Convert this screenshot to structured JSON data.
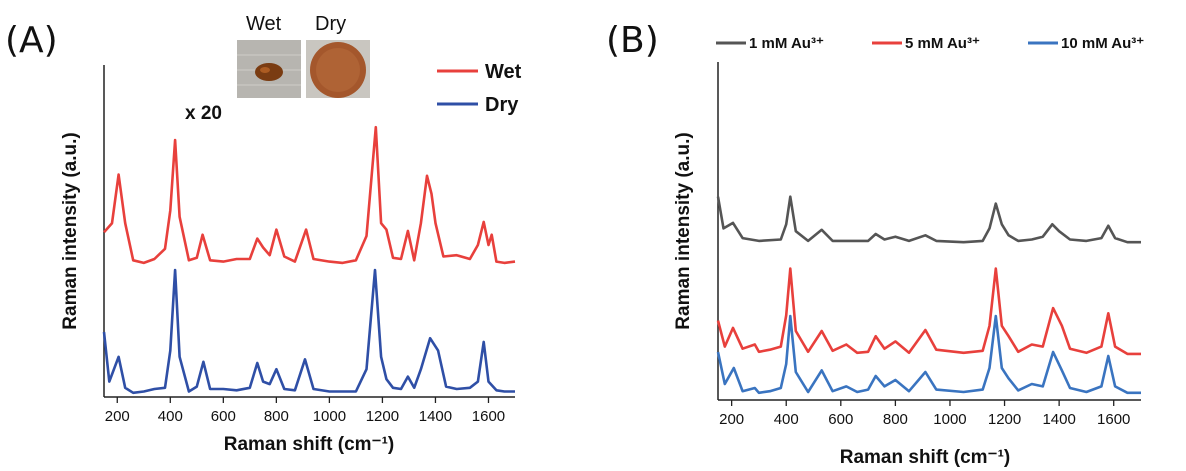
{
  "colors": {
    "wet": "#e8403c",
    "dry": "#2f4fa6",
    "au1": "#555555",
    "au5": "#e8403c",
    "au10": "#3a74c0",
    "axis": "#222222"
  },
  "chart_data": [
    {
      "panel": "(A)",
      "type": "line",
      "xlabel": "Raman shift (cm⁻¹)",
      "ylabel": "Raman intensity (a.u.)",
      "xlim": [
        150,
        1700
      ],
      "xticks": [
        200,
        400,
        600,
        800,
        1000,
        1200,
        1400,
        1600
      ],
      "annotation": "x 20",
      "inset_labels": [
        "Wet",
        "Dry"
      ],
      "series": [
        {
          "name": "Wet",
          "x": [
            150,
            180,
            205,
            230,
            260,
            300,
            340,
            380,
            400,
            418,
            435,
            470,
            500,
            522,
            550,
            600,
            650,
            700,
            728,
            750,
            775,
            800,
            830,
            870,
            912,
            940,
            1000,
            1050,
            1100,
            1140,
            1175,
            1195,
            1215,
            1240,
            1270,
            1296,
            1320,
            1345,
            1368,
            1385,
            1400,
            1430,
            1480,
            1530,
            1560,
            1582,
            1600,
            1612,
            1630,
            1660,
            1700
          ],
          "y": [
            0.28,
            0.35,
            0.73,
            0.35,
            0.06,
            0.04,
            0.07,
            0.15,
            0.45,
            1.0,
            0.4,
            0.06,
            0.08,
            0.26,
            0.06,
            0.05,
            0.07,
            0.07,
            0.23,
            0.16,
            0.1,
            0.3,
            0.09,
            0.05,
            0.3,
            0.07,
            0.05,
            0.04,
            0.06,
            0.25,
            1.1,
            0.35,
            0.3,
            0.08,
            0.07,
            0.29,
            0.06,
            0.35,
            0.72,
            0.58,
            0.35,
            0.09,
            0.1,
            0.07,
            0.18,
            0.36,
            0.18,
            0.26,
            0.05,
            0.04,
            0.05
          ]
        },
        {
          "name": "Dry",
          "x": [
            150,
            170,
            205,
            230,
            260,
            300,
            340,
            380,
            400,
            418,
            435,
            470,
            500,
            525,
            550,
            600,
            650,
            700,
            728,
            750,
            775,
            800,
            830,
            870,
            908,
            940,
            1000,
            1050,
            1100,
            1140,
            1172,
            1195,
            1215,
            1240,
            1270,
            1296,
            1320,
            1345,
            1380,
            1410,
            1440,
            1480,
            1530,
            1560,
            1582,
            1600,
            1630,
            1660,
            1700
          ],
          "y": [
            0.5,
            0.1,
            0.3,
            0.05,
            0.01,
            0.02,
            0.04,
            0.05,
            0.35,
            1.0,
            0.3,
            0.02,
            0.06,
            0.26,
            0.04,
            0.04,
            0.03,
            0.05,
            0.25,
            0.1,
            0.08,
            0.2,
            0.04,
            0.03,
            0.28,
            0.04,
            0.02,
            0.02,
            0.02,
            0.2,
            1.0,
            0.3,
            0.12,
            0.05,
            0.04,
            0.14,
            0.05,
            0.2,
            0.45,
            0.35,
            0.06,
            0.04,
            0.05,
            0.1,
            0.42,
            0.1,
            0.03,
            0.02,
            0.02
          ]
        }
      ]
    },
    {
      "panel": "(B)",
      "type": "line",
      "xlabel": "Raman shift (cm⁻¹)",
      "ylabel": "Raman intensity (a.u.)",
      "xlim": [
        150,
        1700
      ],
      "xticks": [
        200,
        400,
        600,
        800,
        1000,
        1200,
        1400,
        1600
      ],
      "series": [
        {
          "name": "1 mM Au³⁺",
          "x": [
            150,
            170,
            205,
            240,
            300,
            380,
            400,
            415,
            435,
            480,
            530,
            570,
            620,
            700,
            728,
            760,
            800,
            850,
            910,
            950,
            1050,
            1120,
            1145,
            1168,
            1190,
            1215,
            1250,
            1300,
            1340,
            1375,
            1400,
            1440,
            1500,
            1555,
            1580,
            1605,
            1650,
            1700
          ],
          "y": [
            0.35,
            0.12,
            0.16,
            0.05,
            0.03,
            0.04,
            0.15,
            0.35,
            0.1,
            0.03,
            0.11,
            0.03,
            0.03,
            0.03,
            0.08,
            0.04,
            0.06,
            0.03,
            0.07,
            0.03,
            0.02,
            0.03,
            0.12,
            0.3,
            0.15,
            0.07,
            0.03,
            0.04,
            0.06,
            0.15,
            0.1,
            0.04,
            0.03,
            0.05,
            0.14,
            0.05,
            0.02,
            0.02
          ]
        },
        {
          "name": "5 mM Au³⁺",
          "x": [
            150,
            175,
            205,
            240,
            285,
            300,
            340,
            380,
            400,
            415,
            435,
            480,
            530,
            570,
            620,
            660,
            700,
            728,
            760,
            800,
            850,
            910,
            950,
            1050,
            1120,
            1145,
            1168,
            1190,
            1215,
            1250,
            1300,
            1340,
            1378,
            1410,
            1440,
            1500,
            1555,
            1580,
            1605,
            1650,
            1700
          ],
          "y": [
            0.35,
            0.1,
            0.28,
            0.08,
            0.12,
            0.05,
            0.07,
            0.1,
            0.4,
            0.85,
            0.25,
            0.05,
            0.25,
            0.06,
            0.12,
            0.04,
            0.05,
            0.2,
            0.08,
            0.15,
            0.04,
            0.26,
            0.07,
            0.04,
            0.06,
            0.3,
            0.85,
            0.3,
            0.2,
            0.05,
            0.12,
            0.1,
            0.47,
            0.3,
            0.08,
            0.04,
            0.1,
            0.42,
            0.1,
            0.03,
            0.03
          ]
        },
        {
          "name": "10 mM Au³⁺",
          "x": [
            150,
            175,
            208,
            240,
            285,
            300,
            340,
            380,
            400,
            415,
            435,
            480,
            530,
            570,
            620,
            660,
            700,
            728,
            760,
            800,
            850,
            910,
            950,
            1050,
            1120,
            1145,
            1168,
            1190,
            1215,
            1250,
            1300,
            1340,
            1378,
            1410,
            1440,
            1500,
            1555,
            1580,
            1605,
            1650,
            1700
          ],
          "y": [
            0.55,
            0.15,
            0.35,
            0.06,
            0.1,
            0.04,
            0.06,
            0.1,
            0.4,
            1.0,
            0.3,
            0.05,
            0.32,
            0.06,
            0.12,
            0.05,
            0.08,
            0.25,
            0.12,
            0.2,
            0.06,
            0.3,
            0.08,
            0.05,
            0.08,
            0.35,
            1.0,
            0.35,
            0.22,
            0.07,
            0.15,
            0.12,
            0.55,
            0.32,
            0.1,
            0.05,
            0.12,
            0.5,
            0.12,
            0.04,
            0.04
          ]
        }
      ]
    }
  ]
}
